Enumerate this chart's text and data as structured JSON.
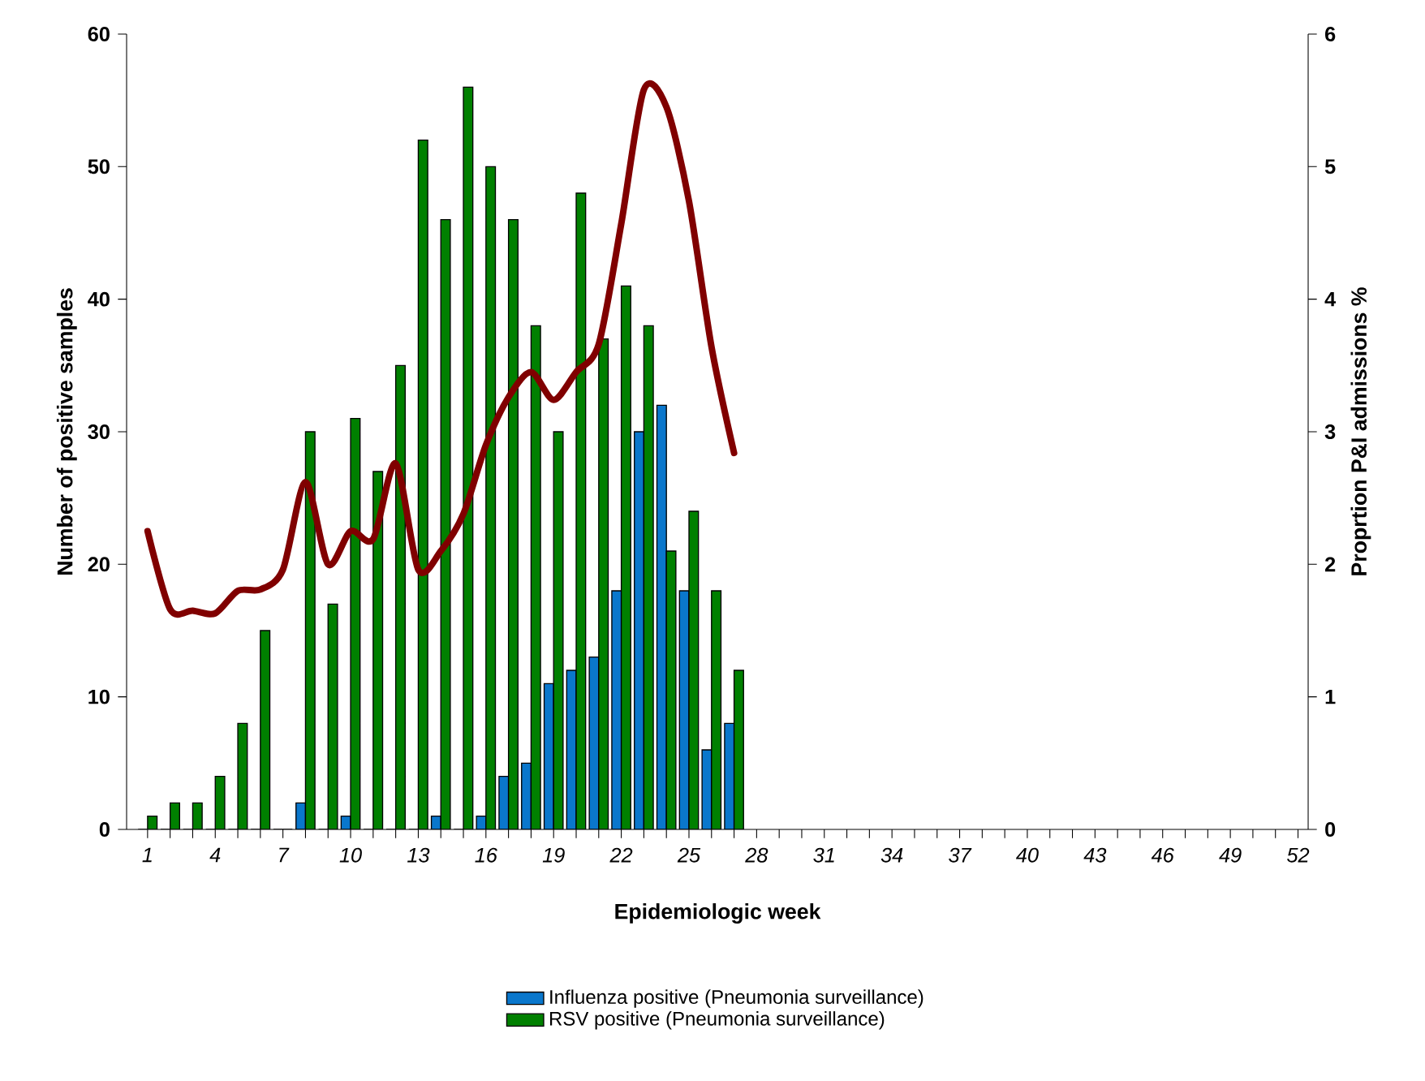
{
  "chart_data": {
    "type": "bar",
    "xlabel": "Epidemiologic week",
    "ylabel": "Number of positive samples",
    "y2label": "Proprtion P&I admissions %",
    "categories": [
      "1",
      null,
      null,
      "4",
      null,
      null,
      "7",
      null,
      null,
      "10",
      null,
      null,
      "13",
      null,
      null,
      "16",
      null,
      null,
      "19",
      null,
      null,
      "22",
      null,
      null,
      "25",
      null,
      null,
      "28",
      null,
      null,
      "31",
      null,
      null,
      "34",
      null,
      null,
      "37",
      null,
      null,
      "40",
      null,
      null,
      "43",
      null,
      null,
      "46",
      null,
      null,
      "49",
      null,
      null,
      "52"
    ],
    "series": [
      {
        "name": "Influenza positive (Pneumonia surveillance)",
        "color": "#0a77cc",
        "values": [
          0,
          0,
          0,
          0,
          0,
          0,
          0,
          2,
          0,
          1,
          0,
          0,
          0,
          1,
          0,
          1,
          4,
          5,
          11,
          12,
          13,
          18,
          30,
          32,
          18,
          6,
          8,
          null,
          null,
          null,
          null,
          null,
          null,
          null,
          null,
          null,
          null,
          null,
          null,
          null,
          null,
          null,
          null,
          null,
          null,
          null,
          null,
          null,
          null,
          null,
          null,
          null
        ]
      },
      {
        "name": "RSV positive (Pneumonia surveillance)",
        "color": "#008000",
        "values": [
          1,
          2,
          2,
          4,
          8,
          15,
          0,
          30,
          17,
          31,
          27,
          35,
          52,
          46,
          56,
          50,
          46,
          38,
          30,
          48,
          37,
          41,
          38,
          21,
          24,
          18,
          12,
          null,
          null,
          null,
          null,
          null,
          null,
          null,
          null,
          null,
          null,
          null,
          null,
          null,
          null,
          null,
          null,
          null,
          null,
          null,
          null,
          null,
          null,
          null,
          null,
          null
        ]
      },
      {
        "type": "line",
        "axis": "y2",
        "color": "#800000",
        "values": [
          2.25,
          1.66,
          1.65,
          1.63,
          1.8,
          1.81,
          1.96,
          2.62,
          2.0,
          2.25,
          2.19,
          2.76,
          1.96,
          2.1,
          2.38,
          2.9,
          3.26,
          3.45,
          3.24,
          3.45,
          3.66,
          4.57,
          5.58,
          5.45,
          4.74,
          3.64,
          2.84,
          null,
          null,
          null,
          null,
          null,
          null,
          null,
          null,
          null,
          null,
          null,
          null,
          null,
          null,
          null,
          null,
          null,
          null,
          null,
          null,
          null,
          null,
          null,
          null,
          null
        ]
      }
    ],
    "ylim": [
      0,
      60
    ],
    "yticks": [
      0,
      10,
      20,
      30,
      40,
      50,
      60
    ],
    "y2lim": [
      0,
      6
    ],
    "y2ticks": [
      0,
      1,
      2,
      3,
      4,
      5,
      6
    ],
    "legend": "bottom"
  }
}
